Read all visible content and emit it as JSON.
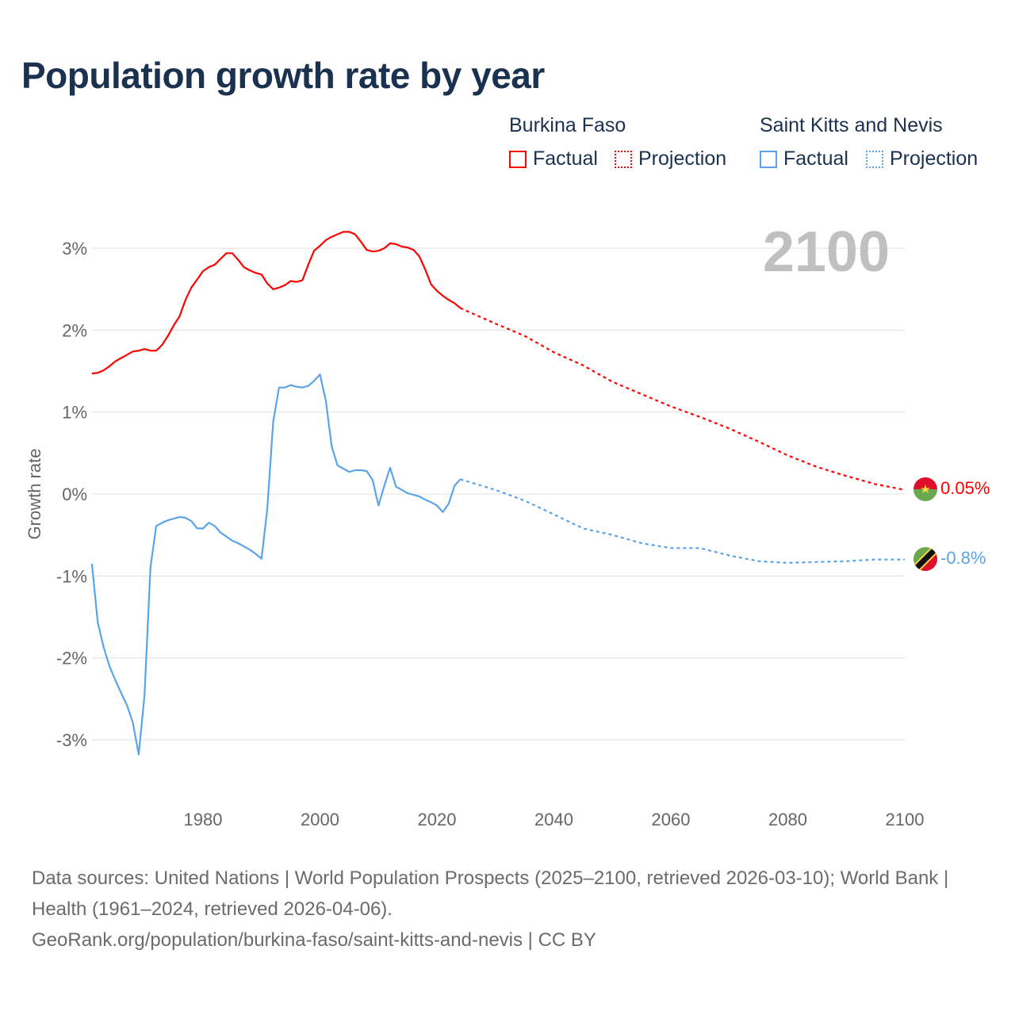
{
  "title": "Population growth rate by year",
  "legend": {
    "groups": [
      {
        "name": "Burkina Faso",
        "factual": "Factual",
        "projection": "Projection"
      },
      {
        "name": "Saint Kitts and Nevis",
        "factual": "Factual",
        "projection": "Projection"
      }
    ]
  },
  "year_label": "2100",
  "end_labels": {
    "bf": "0.05%",
    "skn": "-0.8%"
  },
  "footer": {
    "line1": "Data sources: United Nations | World Population Prospects (2025–2100, retrieved 2026-03-10); World Bank | Health (1961–2024, retrieved 2026-04-06).",
    "line2": "GeoRank.org/population/burkina-faso/saint-kitts-and-nevis | CC BY"
  },
  "chart_data": {
    "type": "line",
    "title": "Population growth rate by year",
    "xlabel": "",
    "ylabel": "Growth rate",
    "xlim": [
      1961,
      2100
    ],
    "ylim": [
      -3.5,
      3.5
    ],
    "xticks": [
      1980,
      2000,
      2020,
      2040,
      2060,
      2080,
      2100
    ],
    "xtick_labels": [
      "1980",
      "2000",
      "2020",
      "2040",
      "2060",
      "2080",
      "2100"
    ],
    "yticks": [
      3,
      2,
      1,
      0,
      -1,
      -2,
      -3
    ],
    "ytick_labels": [
      "3%",
      "2%",
      "1%",
      "0%",
      "-1%",
      "-2%",
      "-3%"
    ],
    "grid": true,
    "legend_position": "top-right",
    "series": [
      {
        "name": "Burkina Faso",
        "kind": "Factual",
        "color": "#ff0000",
        "dash": false,
        "x_start": 1961,
        "values": [
          1.47,
          1.48,
          1.51,
          1.56,
          1.62,
          1.66,
          1.7,
          1.74,
          1.75,
          1.77,
          1.75,
          1.75,
          1.82,
          1.93,
          2.06,
          2.17,
          2.37,
          2.52,
          2.62,
          2.72,
          2.77,
          2.8,
          2.87,
          2.94,
          2.94,
          2.86,
          2.77,
          2.73,
          2.7,
          2.68,
          2.57,
          2.5,
          2.52,
          2.55,
          2.6,
          2.59,
          2.61,
          2.8,
          2.97,
          3.03,
          3.1,
          3.14,
          3.17,
          3.2,
          3.2,
          3.17,
          3.08,
          2.98,
          2.96,
          2.97,
          3.0,
          3.06,
          3.05,
          3.02,
          3.01,
          2.98,
          2.9,
          2.74,
          2.56,
          2.48,
          2.42,
          2.37,
          2.33,
          2.27
        ]
      },
      {
        "name": "Burkina Faso",
        "kind": "Projection",
        "color": "#ff0000",
        "dash": true,
        "x": [
          2024,
          2030,
          2035,
          2040,
          2045,
          2050,
          2055,
          2060,
          2065,
          2070,
          2075,
          2080,
          2085,
          2090,
          2095,
          2100
        ],
        "values": [
          2.27,
          2.08,
          1.93,
          1.73,
          1.57,
          1.37,
          1.22,
          1.07,
          0.94,
          0.8,
          0.64,
          0.47,
          0.33,
          0.22,
          0.12,
          0.05
        ]
      },
      {
        "name": "Saint Kitts and Nevis",
        "kind": "Factual",
        "color": "#5ba4ea",
        "dash": false,
        "x_start": 1961,
        "values": [
          -0.85,
          -1.57,
          -1.87,
          -2.1,
          -2.27,
          -2.43,
          -2.58,
          -2.79,
          -3.18,
          -2.45,
          -0.9,
          -0.39,
          -0.35,
          -0.32,
          -0.3,
          -0.28,
          -0.29,
          -0.33,
          -0.42,
          -0.42,
          -0.35,
          -0.39,
          -0.47,
          -0.52,
          -0.57,
          -0.6,
          -0.64,
          -0.68,
          -0.73,
          -0.79,
          -0.18,
          0.88,
          1.3,
          1.3,
          1.33,
          1.31,
          1.3,
          1.32,
          1.38,
          1.46,
          1.14,
          0.58,
          0.35,
          0.31,
          0.27,
          0.29,
          0.29,
          0.28,
          0.17,
          -0.14,
          0.1,
          0.32,
          0.09,
          0.05,
          0.01,
          -0.01,
          -0.03,
          -0.07,
          -0.1,
          -0.14,
          -0.22,
          -0.12,
          0.1,
          0.18
        ]
      },
      {
        "name": "Saint Kitts and Nevis",
        "kind": "Projection",
        "color": "#5ba4ea",
        "dash": true,
        "x": [
          2024,
          2030,
          2035,
          2040,
          2045,
          2050,
          2055,
          2060,
          2065,
          2070,
          2075,
          2080,
          2085,
          2090,
          2095,
          2100
        ],
        "values": [
          0.18,
          0.05,
          -0.08,
          -0.25,
          -0.42,
          -0.5,
          -0.6,
          -0.66,
          -0.66,
          -0.75,
          -0.82,
          -0.84,
          -0.83,
          -0.82,
          -0.8,
          -0.8
        ]
      }
    ]
  }
}
